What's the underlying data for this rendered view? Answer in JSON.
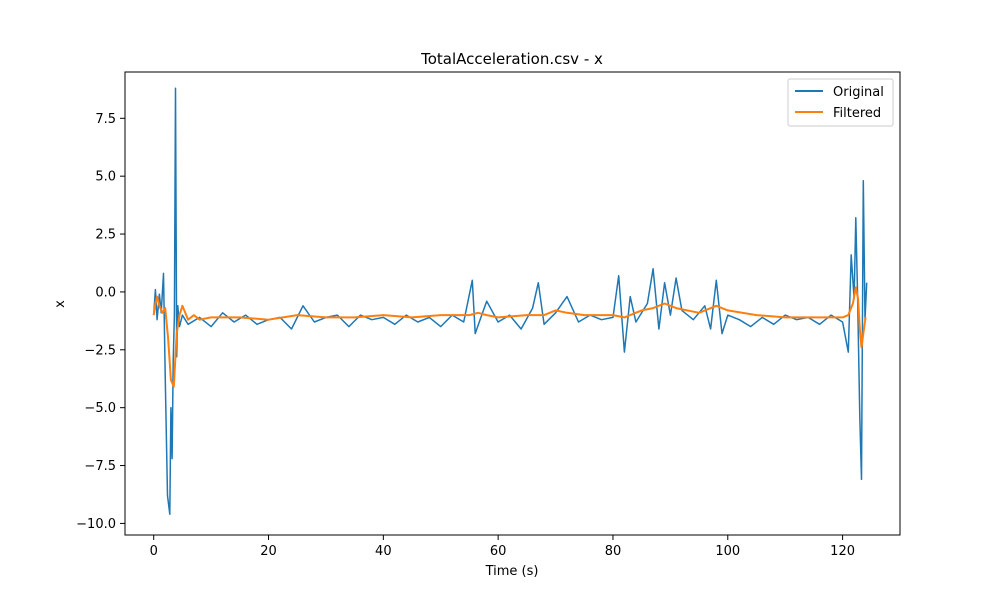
{
  "chart_data": {
    "type": "line",
    "title": "TotalAcceleration.csv - x",
    "xlabel": "Time (s)",
    "ylabel": "x",
    "xlim": [
      -5,
      130
    ],
    "ylim": [
      -10.5,
      9.5
    ],
    "xticks": [
      0,
      20,
      40,
      60,
      80,
      100,
      120
    ],
    "yticks": [
      -10.0,
      -7.5,
      -5.0,
      -2.5,
      0.0,
      2.5,
      5.0,
      7.5
    ],
    "ytick_labels": [
      "−10.0",
      "−7.5",
      "−5.0",
      "−2.5",
      "0.0",
      "2.5",
      "5.0",
      "7.5"
    ],
    "grid": false,
    "legend_position": "top-right",
    "series": [
      {
        "name": "Original",
        "color": "#1f77b4",
        "x": [
          0.0,
          0.3,
          0.6,
          1.0,
          1.3,
          1.7,
          2.0,
          2.4,
          2.8,
          3.0,
          3.2,
          3.4,
          3.6,
          3.8,
          4.0,
          4.2,
          4.5,
          5.0,
          6.0,
          8.0,
          10.0,
          12.0,
          14.0,
          16.0,
          18.0,
          20.0,
          22.0,
          24.0,
          26.0,
          28.0,
          30.0,
          32.0,
          34.0,
          36.0,
          38.0,
          40.0,
          42.0,
          44.0,
          46.0,
          48.0,
          50.0,
          52.0,
          54.0,
          55.5,
          56.0,
          57.0,
          58.0,
          60.0,
          62.0,
          64.0,
          66.0,
          67.0,
          68.0,
          70.0,
          72.0,
          74.0,
          76.0,
          78.0,
          80.0,
          81.0,
          82.0,
          83.0,
          84.0,
          86.0,
          87.0,
          88.0,
          89.0,
          90.0,
          91.0,
          92.0,
          94.0,
          96.0,
          97.0,
          98.0,
          99.0,
          100.0,
          102.0,
          104.0,
          106.0,
          108.0,
          110.0,
          112.0,
          114.0,
          116.0,
          118.0,
          120.0,
          121.0,
          121.5,
          122.0,
          122.3,
          122.6,
          123.0,
          123.3,
          123.6,
          123.9,
          124.2
        ],
        "y": [
          -1.0,
          0.1,
          -1.2,
          -0.1,
          -0.9,
          0.8,
          -3.6,
          -8.8,
          -9.6,
          -5.0,
          -7.2,
          -3.0,
          -1.0,
          8.8,
          -2.8,
          -0.6,
          -1.5,
          -1.0,
          -1.4,
          -1.1,
          -1.5,
          -0.9,
          -1.3,
          -1.0,
          -1.4,
          -1.2,
          -1.1,
          -1.6,
          -0.6,
          -1.3,
          -1.1,
          -1.0,
          -1.5,
          -1.0,
          -1.2,
          -1.1,
          -1.4,
          -1.0,
          -1.3,
          -1.1,
          -1.5,
          -1.0,
          -1.3,
          0.5,
          -1.8,
          -1.1,
          -0.4,
          -1.3,
          -1.0,
          -1.6,
          -0.7,
          0.4,
          -1.4,
          -0.9,
          -0.2,
          -1.3,
          -1.0,
          -1.2,
          -1.1,
          0.7,
          -2.6,
          -0.2,
          -1.3,
          -0.5,
          1.0,
          -1.6,
          0.4,
          -1.0,
          0.6,
          -0.8,
          -1.2,
          -0.6,
          -1.6,
          0.5,
          -1.8,
          -1.0,
          -1.2,
          -1.5,
          -1.1,
          -1.4,
          -1.0,
          -1.2,
          -1.1,
          -1.4,
          -1.0,
          -1.3,
          -2.6,
          1.6,
          -0.3,
          3.2,
          0.0,
          -5.4,
          -8.1,
          4.8,
          -1.2,
          0.4
        ]
      },
      {
        "name": "Filtered",
        "color": "#ff7f0e",
        "x": [
          0.0,
          0.3,
          0.6,
          1.0,
          1.5,
          2.0,
          2.5,
          3.0,
          3.5,
          4.0,
          4.5,
          5.0,
          6.0,
          7.0,
          8.0,
          10.0,
          15.0,
          20.0,
          25.0,
          30.0,
          35.0,
          40.0,
          45.0,
          50.0,
          55.0,
          56.5,
          58.0,
          60.0,
          65.0,
          68.0,
          70.0,
          72.0,
          75.0,
          80.0,
          82.0,
          85.0,
          87.0,
          89.0,
          91.0,
          95.0,
          98.0,
          100.0,
          105.0,
          110.0,
          115.0,
          120.0,
          121.0,
          121.8,
          122.3,
          122.7,
          123.0,
          123.3,
          123.6,
          124.0
        ],
        "y": [
          -1.0,
          -0.5,
          -0.2,
          -0.6,
          -0.9,
          -0.7,
          -2.0,
          -3.8,
          -4.1,
          -1.8,
          -1.0,
          -0.6,
          -1.2,
          -1.0,
          -1.2,
          -1.1,
          -1.1,
          -1.2,
          -1.0,
          -1.1,
          -1.1,
          -1.0,
          -1.1,
          -1.0,
          -1.0,
          -0.9,
          -1.0,
          -1.1,
          -1.0,
          -1.0,
          -0.8,
          -0.9,
          -1.0,
          -1.0,
          -1.1,
          -0.8,
          -0.7,
          -0.5,
          -0.7,
          -0.9,
          -0.6,
          -0.8,
          -1.0,
          -1.1,
          -1.1,
          -1.1,
          -1.0,
          -0.5,
          0.2,
          -0.3,
          -1.6,
          -2.4,
          -1.8,
          -1.1
        ]
      }
    ]
  }
}
